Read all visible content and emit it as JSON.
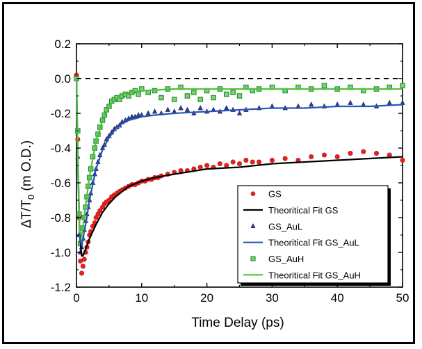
{
  "chart_data": {
    "type": "scatter",
    "xlabel": "Time Delay (ps)",
    "ylabel_main": "ΔT/T",
    "ylabel_sub": "0",
    "ylabel_tail": " (m O.D.)",
    "xlim": [
      0,
      50
    ],
    "ylim": [
      -1.2,
      0.2
    ],
    "xticks": [
      "0",
      "10",
      "20",
      "30",
      "40",
      "50"
    ],
    "yticks": [
      "0.2",
      "0.0",
      "-0.2",
      "-0.4",
      "-0.6",
      "-0.8",
      "-1.0",
      "-1.2"
    ],
    "zero_line": true,
    "legend_position": "bottom-right",
    "legend": [
      "GS",
      "Theoritical Fit GS",
      "GS_AuL",
      "Theoritical Fit GS_AuL",
      "GS_AuH",
      "Theoritical Fit GS_AuH"
    ],
    "series": [
      {
        "name": "GS",
        "kind": "scatter",
        "marker": "circle",
        "color": "#e8201e",
        "points": [
          [
            0.0,
            0.02
          ],
          [
            0.2,
            -0.35
          ],
          [
            0.4,
            -0.8
          ],
          [
            0.6,
            -1.05
          ],
          [
            0.8,
            -1.12
          ],
          [
            1.0,
            -1.08
          ],
          [
            1.2,
            -1.04
          ],
          [
            1.4,
            -1.0
          ],
          [
            1.6,
            -0.97
          ],
          [
            1.8,
            -0.94
          ],
          [
            2.0,
            -0.9
          ],
          [
            2.2,
            -0.88
          ],
          [
            2.5,
            -0.85
          ],
          [
            2.8,
            -0.83
          ],
          [
            3.0,
            -0.8
          ],
          [
            3.3,
            -0.78
          ],
          [
            3.6,
            -0.76
          ],
          [
            4.0,
            -0.74
          ],
          [
            4.3,
            -0.72
          ],
          [
            4.6,
            -0.71
          ],
          [
            5.0,
            -0.7
          ],
          [
            5.4,
            -0.68
          ],
          [
            5.8,
            -0.67
          ],
          [
            6.2,
            -0.66
          ],
          [
            6.6,
            -0.65
          ],
          [
            7.0,
            -0.64
          ],
          [
            7.5,
            -0.63
          ],
          [
            8.0,
            -0.62
          ],
          [
            8.5,
            -0.61
          ],
          [
            9.0,
            -0.61
          ],
          [
            9.5,
            -0.6
          ],
          [
            10.0,
            -0.59
          ],
          [
            10.5,
            -0.59
          ],
          [
            11.0,
            -0.58
          ],
          [
            11.5,
            -0.58
          ],
          [
            12.0,
            -0.57
          ],
          [
            12.5,
            -0.57
          ],
          [
            13.0,
            -0.56
          ],
          [
            14.0,
            -0.55
          ],
          [
            15.0,
            -0.54
          ],
          [
            16.0,
            -0.53
          ],
          [
            17.0,
            -0.53
          ],
          [
            18.0,
            -0.52
          ],
          [
            19.0,
            -0.51
          ],
          [
            20.0,
            -0.5
          ],
          [
            21.0,
            -0.51
          ],
          [
            22.0,
            -0.49
          ],
          [
            23.0,
            -0.5
          ],
          [
            24.0,
            -0.48
          ],
          [
            25.0,
            -0.49
          ],
          [
            26.0,
            -0.47
          ],
          [
            27.0,
            -0.48
          ],
          [
            28.0,
            -0.48
          ],
          [
            30.0,
            -0.47
          ],
          [
            32.0,
            -0.46
          ],
          [
            34.0,
            -0.47
          ],
          [
            36.0,
            -0.45
          ],
          [
            38.0,
            -0.44
          ],
          [
            40.0,
            -0.45
          ],
          [
            42.0,
            -0.43
          ],
          [
            44.0,
            -0.42
          ],
          [
            46.0,
            -0.43
          ],
          [
            48.0,
            -0.44
          ],
          [
            50.0,
            -0.47
          ]
        ]
      },
      {
        "name": "Theoritical Fit GS",
        "kind": "line",
        "color": "#000000",
        "points": [
          [
            0.0,
            0.0
          ],
          [
            0.2,
            -0.45
          ],
          [
            0.5,
            -0.9
          ],
          [
            0.8,
            -1.02
          ],
          [
            1.0,
            -1.02
          ],
          [
            1.5,
            -0.97
          ],
          [
            2.0,
            -0.92
          ],
          [
            3.0,
            -0.84
          ],
          [
            4.0,
            -0.77
          ],
          [
            5.0,
            -0.72
          ],
          [
            6.0,
            -0.68
          ],
          [
            7.0,
            -0.65
          ],
          [
            8.0,
            -0.62
          ],
          [
            10.0,
            -0.59
          ],
          [
            12.0,
            -0.57
          ],
          [
            15.0,
            -0.55
          ],
          [
            20.0,
            -0.52
          ],
          [
            25.0,
            -0.51
          ],
          [
            30.0,
            -0.49
          ],
          [
            35.0,
            -0.48
          ],
          [
            40.0,
            -0.47
          ],
          [
            45.0,
            -0.46
          ],
          [
            50.0,
            -0.45
          ]
        ]
      },
      {
        "name": "GS_AuL",
        "kind": "scatter",
        "marker": "triangle",
        "color": "#2e3f8f",
        "points": [
          [
            0.0,
            0.01
          ],
          [
            0.2,
            -0.45
          ],
          [
            0.4,
            -0.9
          ],
          [
            0.6,
            -1.0
          ],
          [
            0.8,
            -0.97
          ],
          [
            1.0,
            -0.92
          ],
          [
            1.2,
            -0.87
          ],
          [
            1.4,
            -0.82
          ],
          [
            1.6,
            -0.78
          ],
          [
            1.8,
            -0.74
          ],
          [
            2.0,
            -0.7
          ],
          [
            2.2,
            -0.66
          ],
          [
            2.5,
            -0.6
          ],
          [
            2.8,
            -0.55
          ],
          [
            3.0,
            -0.52
          ],
          [
            3.3,
            -0.48
          ],
          [
            3.6,
            -0.44
          ],
          [
            4.0,
            -0.4
          ],
          [
            4.3,
            -0.38
          ],
          [
            4.6,
            -0.35
          ],
          [
            5.0,
            -0.33
          ],
          [
            5.4,
            -0.31
          ],
          [
            5.8,
            -0.29
          ],
          [
            6.2,
            -0.28
          ],
          [
            6.6,
            -0.27
          ],
          [
            7.0,
            -0.25
          ],
          [
            7.5,
            -0.24
          ],
          [
            8.0,
            -0.23
          ],
          [
            8.5,
            -0.22
          ],
          [
            9.0,
            -0.22
          ],
          [
            9.5,
            -0.21
          ],
          [
            10.0,
            -0.21
          ],
          [
            11.0,
            -0.2
          ],
          [
            12.0,
            -0.19
          ],
          [
            13.0,
            -0.2
          ],
          [
            14.0,
            -0.18
          ],
          [
            15.0,
            -0.19
          ],
          [
            16.0,
            -0.17
          ],
          [
            17.0,
            -0.18
          ],
          [
            18.0,
            -0.2
          ],
          [
            19.0,
            -0.17
          ],
          [
            20.0,
            -0.19
          ],
          [
            21.0,
            -0.18
          ],
          [
            22.0,
            -0.19
          ],
          [
            23.0,
            -0.17
          ],
          [
            24.0,
            -0.18
          ],
          [
            25.0,
            -0.2
          ],
          [
            26.0,
            -0.18
          ],
          [
            28.0,
            -0.17
          ],
          [
            30.0,
            -0.16
          ],
          [
            32.0,
            -0.17
          ],
          [
            34.0,
            -0.16
          ],
          [
            36.0,
            -0.15
          ],
          [
            38.0,
            -0.16
          ],
          [
            40.0,
            -0.15
          ],
          [
            42.0,
            -0.14
          ],
          [
            44.0,
            -0.15
          ],
          [
            46.0,
            -0.16
          ],
          [
            48.0,
            -0.14
          ],
          [
            50.0,
            -0.14
          ]
        ]
      },
      {
        "name": "Theoritical Fit GS_AuL",
        "kind": "line",
        "color": "#2b54b5",
        "points": [
          [
            0.0,
            0.0
          ],
          [
            0.2,
            -0.5
          ],
          [
            0.5,
            -0.92
          ],
          [
            0.8,
            -0.96
          ],
          [
            1.0,
            -0.92
          ],
          [
            1.5,
            -0.82
          ],
          [
            2.0,
            -0.7
          ],
          [
            3.0,
            -0.52
          ],
          [
            4.0,
            -0.41
          ],
          [
            5.0,
            -0.34
          ],
          [
            6.0,
            -0.29
          ],
          [
            7.0,
            -0.26
          ],
          [
            8.0,
            -0.24
          ],
          [
            10.0,
            -0.22
          ],
          [
            12.0,
            -0.21
          ],
          [
            15.0,
            -0.2
          ],
          [
            20.0,
            -0.19
          ],
          [
            25.0,
            -0.18
          ],
          [
            30.0,
            -0.17
          ],
          [
            35.0,
            -0.17
          ],
          [
            40.0,
            -0.16
          ],
          [
            45.0,
            -0.16
          ],
          [
            50.0,
            -0.15
          ]
        ]
      },
      {
        "name": "GS_AuH",
        "kind": "scatter",
        "marker": "square",
        "color": "#1e8a2a",
        "points": [
          [
            0.0,
            0.0
          ],
          [
            0.2,
            -0.3
          ],
          [
            0.4,
            -0.78
          ],
          [
            0.6,
            -0.95
          ],
          [
            0.8,
            -0.92
          ],
          [
            1.0,
            -0.86
          ],
          [
            1.2,
            -0.8
          ],
          [
            1.4,
            -0.74
          ],
          [
            1.6,
            -0.68
          ],
          [
            1.8,
            -0.62
          ],
          [
            2.0,
            -0.57
          ],
          [
            2.2,
            -0.52
          ],
          [
            2.5,
            -0.45
          ],
          [
            2.8,
            -0.4
          ],
          [
            3.0,
            -0.36
          ],
          [
            3.3,
            -0.32
          ],
          [
            3.6,
            -0.28
          ],
          [
            4.0,
            -0.24
          ],
          [
            4.3,
            -0.21
          ],
          [
            4.6,
            -0.18
          ],
          [
            5.0,
            -0.16
          ],
          [
            5.4,
            -0.13
          ],
          [
            5.8,
            -0.12
          ],
          [
            6.2,
            -0.11
          ],
          [
            6.6,
            -0.12
          ],
          [
            7.0,
            -0.1
          ],
          [
            7.5,
            -0.09
          ],
          [
            8.0,
            -0.1
          ],
          [
            8.5,
            -0.08
          ],
          [
            9.0,
            -0.07
          ],
          [
            9.5,
            -0.09
          ],
          [
            10.0,
            -0.06
          ],
          [
            11.0,
            -0.08
          ],
          [
            12.0,
            -0.07
          ],
          [
            13.0,
            -0.11
          ],
          [
            14.0,
            -0.06
          ],
          [
            15.0,
            -0.12
          ],
          [
            16.0,
            -0.05
          ],
          [
            17.0,
            -0.1
          ],
          [
            18.0,
            -0.08
          ],
          [
            19.0,
            -0.12
          ],
          [
            20.0,
            -0.07
          ],
          [
            21.0,
            -0.11
          ],
          [
            22.0,
            -0.06
          ],
          [
            23.0,
            -0.09
          ],
          [
            24.0,
            -0.08
          ],
          [
            25.0,
            -0.1
          ],
          [
            26.0,
            -0.05
          ],
          [
            27.0,
            -0.07
          ],
          [
            28.0,
            -0.06
          ],
          [
            30.0,
            -0.05
          ],
          [
            32.0,
            -0.07
          ],
          [
            34.0,
            -0.05
          ],
          [
            36.0,
            -0.06
          ],
          [
            38.0,
            -0.04
          ],
          [
            40.0,
            -0.06
          ],
          [
            42.0,
            -0.05
          ],
          [
            44.0,
            -0.07
          ],
          [
            46.0,
            -0.06
          ],
          [
            48.0,
            -0.05
          ],
          [
            50.0,
            -0.04
          ]
        ]
      },
      {
        "name": "Theoritical Fit GS_AuH",
        "kind": "line",
        "color": "#4fc23a",
        "points": [
          [
            0.0,
            0.0
          ],
          [
            0.2,
            -0.45
          ],
          [
            0.5,
            -0.88
          ],
          [
            0.8,
            -0.9
          ],
          [
            1.0,
            -0.85
          ],
          [
            1.5,
            -0.7
          ],
          [
            2.0,
            -0.56
          ],
          [
            3.0,
            -0.36
          ],
          [
            4.0,
            -0.24
          ],
          [
            5.0,
            -0.16
          ],
          [
            6.0,
            -0.12
          ],
          [
            7.0,
            -0.09
          ],
          [
            8.0,
            -0.08
          ],
          [
            10.0,
            -0.07
          ],
          [
            15.0,
            -0.06
          ],
          [
            20.0,
            -0.06
          ],
          [
            30.0,
            -0.06
          ],
          [
            40.0,
            -0.06
          ],
          [
            50.0,
            -0.06
          ]
        ]
      }
    ]
  }
}
